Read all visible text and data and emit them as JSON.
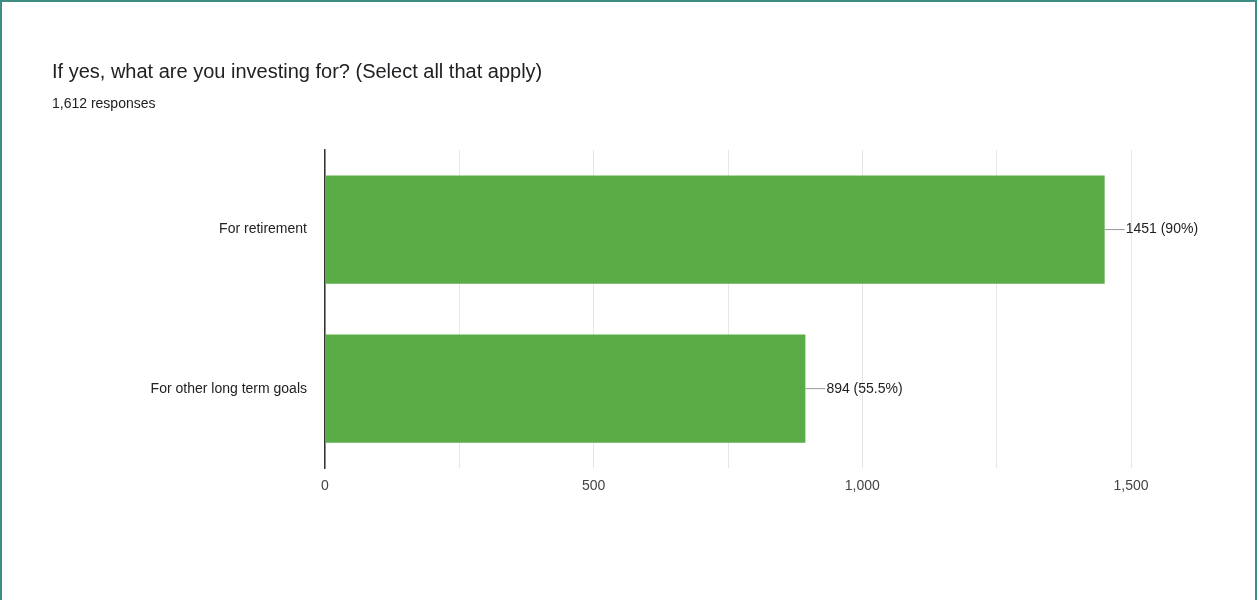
{
  "chart_data": {
    "type": "bar",
    "orientation": "horizontal",
    "title": "If yes, what are you investing for? (Select all that apply)",
    "subtitle": "1,612 responses",
    "categories": [
      "For retirement",
      "For other long term goals"
    ],
    "values": [
      1451,
      894
    ],
    "color": "#5aad46",
    "value_labels": [
      "1451 (90%)",
      "894 (55.5%)"
    ],
    "xlim": [
      0,
      1500
    ],
    "xticks": [
      0,
      {
        "value": 250,
        "label": null
      },
      500,
      {
        "value": 750,
        "label": null
      },
      {
        "value": 1000,
        "label": "1,000"
      },
      {
        "value": 1250,
        "label": null
      },
      {
        "value": 1500,
        "label": "1,500"
      }
    ],
    "grid": "x",
    "legend": false
  }
}
